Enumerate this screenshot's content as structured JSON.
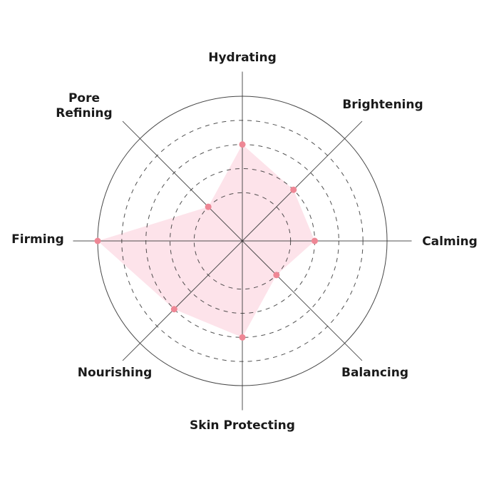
{
  "chart_data": {
    "type": "radar",
    "axes": [
      "Hydrating",
      "Brightening",
      "Calming",
      "Balancing",
      "Skin Protecting",
      "Nourishing",
      "Firming",
      "Pore Refining"
    ],
    "axis_labels_display": [
      [
        "Hydrating"
      ],
      [
        "Brightening"
      ],
      [
        "Calming"
      ],
      [
        "Balancing"
      ],
      [
        "Skin Protecting"
      ],
      [
        "Nourishing"
      ],
      [
        "Firming"
      ],
      [
        "Pore",
        "Refining"
      ]
    ],
    "values": [
      4,
      3,
      3,
      2,
      4,
      4,
      6,
      2
    ],
    "range": [
      0,
      6
    ],
    "rings": [
      2,
      3,
      4,
      5,
      6
    ],
    "fill_color": "#fde3ea",
    "point_color": "#ee8795",
    "grid_color": "#333333"
  }
}
